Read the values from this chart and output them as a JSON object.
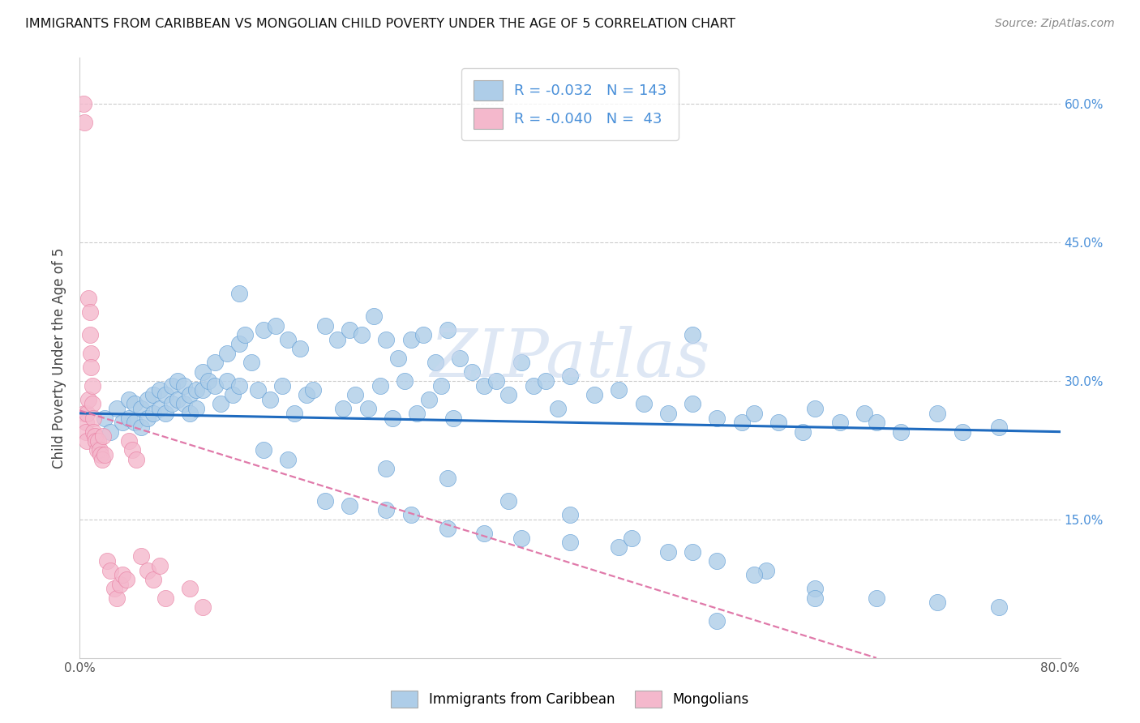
{
  "title": "IMMIGRANTS FROM CARIBBEAN VS MONGOLIAN CHILD POVERTY UNDER THE AGE OF 5 CORRELATION CHART",
  "source": "Source: ZipAtlas.com",
  "ylabel": "Child Poverty Under the Age of 5",
  "x_min": 0.0,
  "x_max": 0.8,
  "y_min": 0.0,
  "y_max": 0.65,
  "y_ticks": [
    0.15,
    0.3,
    0.45,
    0.6
  ],
  "y_tick_labels": [
    "15.0%",
    "30.0%",
    "45.0%",
    "60.0%"
  ],
  "legend_label1": "Immigrants from Caribbean",
  "legend_label2": "Mongolians",
  "r1": "-0.032",
  "n1": "143",
  "r2": "-0.040",
  "n2": " 43",
  "color_blue": "#aecde8",
  "color_pink": "#f4b8cc",
  "edge_blue": "#5b9bd5",
  "edge_pink": "#e87ca0",
  "line_blue": "#1f6bbf",
  "line_pink": "#e07aaa",
  "watermark": "ZIPatlas",
  "blue_line_start_y": 0.265,
  "blue_line_end_y": 0.245,
  "pink_line_start_y": 0.268,
  "pink_line_end_x": 0.65,
  "pink_line_end_y": 0.0,
  "blue_x": [
    0.02,
    0.025,
    0.03,
    0.035,
    0.04,
    0.04,
    0.045,
    0.045,
    0.05,
    0.05,
    0.055,
    0.055,
    0.06,
    0.06,
    0.065,
    0.065,
    0.07,
    0.07,
    0.075,
    0.075,
    0.08,
    0.08,
    0.085,
    0.085,
    0.09,
    0.09,
    0.095,
    0.095,
    0.1,
    0.1,
    0.105,
    0.11,
    0.11,
    0.115,
    0.12,
    0.12,
    0.125,
    0.13,
    0.13,
    0.135,
    0.14,
    0.145,
    0.15,
    0.155,
    0.16,
    0.165,
    0.17,
    0.175,
    0.18,
    0.185,
    0.19,
    0.2,
    0.21,
    0.215,
    0.22,
    0.225,
    0.23,
    0.235,
    0.24,
    0.245,
    0.25,
    0.255,
    0.26,
    0.265,
    0.27,
    0.275,
    0.28,
    0.285,
    0.29,
    0.295,
    0.3,
    0.305,
    0.31,
    0.32,
    0.33,
    0.34,
    0.35,
    0.36,
    0.37,
    0.38,
    0.39,
    0.4,
    0.42,
    0.44,
    0.46,
    0.48,
    0.5,
    0.52,
    0.54,
    0.55,
    0.57,
    0.59,
    0.6,
    0.62,
    0.64,
    0.65,
    0.67,
    0.7,
    0.72,
    0.75,
    0.13,
    0.15,
    0.17,
    0.2,
    0.22,
    0.25,
    0.27,
    0.3,
    0.33,
    0.36,
    0.4,
    0.44,
    0.48,
    0.52,
    0.56,
    0.6,
    0.65,
    0.7,
    0.75,
    0.25,
    0.3,
    0.35,
    0.4,
    0.45,
    0.5,
    0.55,
    0.6,
    0.5,
    0.52
  ],
  "blue_y": [
    0.26,
    0.245,
    0.27,
    0.255,
    0.28,
    0.26,
    0.275,
    0.255,
    0.27,
    0.25,
    0.28,
    0.26,
    0.285,
    0.265,
    0.29,
    0.27,
    0.285,
    0.265,
    0.295,
    0.275,
    0.3,
    0.28,
    0.295,
    0.275,
    0.285,
    0.265,
    0.29,
    0.27,
    0.31,
    0.29,
    0.3,
    0.32,
    0.295,
    0.275,
    0.33,
    0.3,
    0.285,
    0.34,
    0.295,
    0.35,
    0.32,
    0.29,
    0.355,
    0.28,
    0.36,
    0.295,
    0.345,
    0.265,
    0.335,
    0.285,
    0.29,
    0.36,
    0.345,
    0.27,
    0.355,
    0.285,
    0.35,
    0.27,
    0.37,
    0.295,
    0.345,
    0.26,
    0.325,
    0.3,
    0.345,
    0.265,
    0.35,
    0.28,
    0.32,
    0.295,
    0.355,
    0.26,
    0.325,
    0.31,
    0.295,
    0.3,
    0.285,
    0.32,
    0.295,
    0.3,
    0.27,
    0.305,
    0.285,
    0.29,
    0.275,
    0.265,
    0.275,
    0.26,
    0.255,
    0.265,
    0.255,
    0.245,
    0.27,
    0.255,
    0.265,
    0.255,
    0.245,
    0.265,
    0.245,
    0.25,
    0.395,
    0.225,
    0.215,
    0.17,
    0.165,
    0.16,
    0.155,
    0.14,
    0.135,
    0.13,
    0.125,
    0.12,
    0.115,
    0.105,
    0.095,
    0.075,
    0.065,
    0.06,
    0.055,
    0.205,
    0.195,
    0.17,
    0.155,
    0.13,
    0.115,
    0.09,
    0.065,
    0.35,
    0.04
  ],
  "pink_x": [
    0.003,
    0.004,
    0.004,
    0.005,
    0.005,
    0.006,
    0.006,
    0.007,
    0.007,
    0.008,
    0.008,
    0.009,
    0.009,
    0.01,
    0.01,
    0.011,
    0.011,
    0.012,
    0.013,
    0.014,
    0.015,
    0.016,
    0.017,
    0.018,
    0.019,
    0.02,
    0.022,
    0.025,
    0.028,
    0.03,
    0.033,
    0.035,
    0.038,
    0.04,
    0.043,
    0.046,
    0.05,
    0.055,
    0.06,
    0.065,
    0.07,
    0.09,
    0.1
  ],
  "pink_y": [
    0.6,
    0.58,
    0.265,
    0.255,
    0.245,
    0.235,
    0.265,
    0.28,
    0.39,
    0.375,
    0.35,
    0.33,
    0.315,
    0.295,
    0.275,
    0.26,
    0.245,
    0.24,
    0.235,
    0.225,
    0.235,
    0.225,
    0.22,
    0.215,
    0.24,
    0.22,
    0.105,
    0.095,
    0.075,
    0.065,
    0.08,
    0.09,
    0.085,
    0.235,
    0.225,
    0.215,
    0.11,
    0.095,
    0.085,
    0.1,
    0.065,
    0.075,
    0.055
  ]
}
